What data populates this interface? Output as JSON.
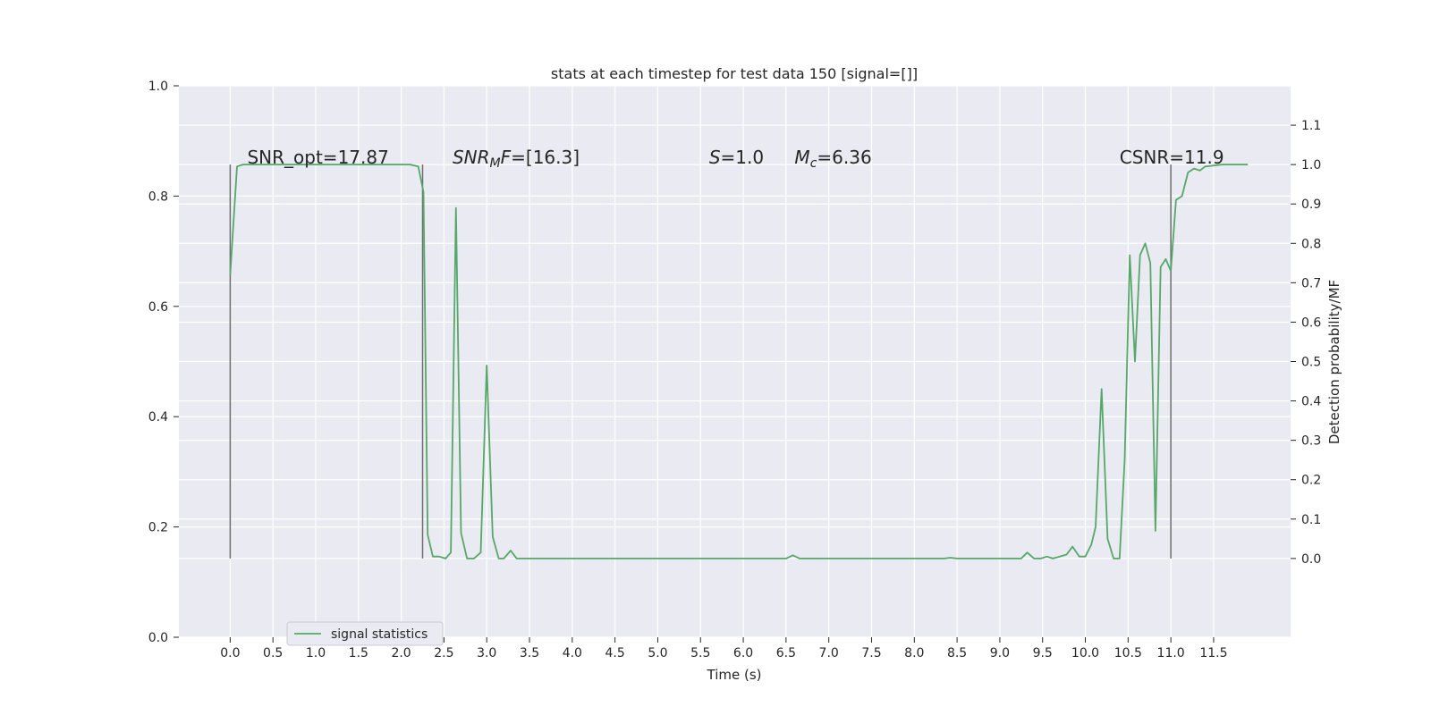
{
  "chart_data": {
    "type": "line",
    "title": "stats at each timestep for test data 150 [signal=[]]",
    "xlabel": "Time (s)",
    "ylabel": "",
    "y2label": "Detection probability/MF",
    "xlim": [
      -0.6,
      12.4
    ],
    "ylim": [
      0.0,
      1.0
    ],
    "y2lim": [
      -0.2,
      1.2
    ],
    "xticks": [
      "0.0",
      "0.5",
      "1.0",
      "1.5",
      "2.0",
      "2.5",
      "3.0",
      "3.5",
      "4.0",
      "4.5",
      "5.0",
      "5.5",
      "6.0",
      "6.5",
      "7.0",
      "7.5",
      "8.0",
      "8.5",
      "9.0",
      "9.5",
      "10.0",
      "10.5",
      "11.0",
      "11.5"
    ],
    "yticks": [
      "0.0",
      "0.2",
      "0.4",
      "0.6",
      "0.8",
      "1.0"
    ],
    "y2ticks": [
      "0.0",
      "0.1",
      "0.2",
      "0.3",
      "0.4",
      "0.5",
      "0.6",
      "0.7",
      "0.8",
      "0.9",
      "1.0",
      "1.1"
    ],
    "grid": true,
    "background": "#eaeaf2",
    "line_color": "#55a868",
    "marker_color": "#6e6e6e",
    "legend_placement": "lower-left",
    "annotations": [
      {
        "text": "SNR_opt=17.87",
        "x": 0.2,
        "y": 1.0
      },
      {
        "text": "SNR_MF=[16.3]",
        "x": 2.6,
        "y": 1.0
      },
      {
        "text": "S=1.0",
        "x": 5.6,
        "y": 1.0
      },
      {
        "text": "M_c=6.36",
        "x": 6.6,
        "y": 1.0
      },
      {
        "text": "CSNR=11.9",
        "x": 10.4,
        "y": 1.0
      }
    ],
    "vlines": [
      {
        "x": 0.0,
        "y2": [
          0.0,
          1.0
        ]
      },
      {
        "x": 2.25,
        "y2": [
          0.0,
          1.0
        ]
      },
      {
        "x": 11.0,
        "y2": [
          0.0,
          1.0
        ]
      }
    ],
    "series": [
      {
        "name": "signal statistics",
        "axis": "right",
        "x": [
          0.0,
          0.08,
          0.15,
          0.5,
          1.0,
          1.5,
          2.0,
          2.1,
          2.2,
          2.26,
          2.31,
          2.37,
          2.44,
          2.52,
          2.58,
          2.64,
          2.7,
          2.77,
          2.85,
          2.93,
          3.0,
          3.07,
          3.14,
          3.2,
          3.28,
          3.35,
          3.43,
          3.5,
          4.0,
          4.5,
          5.0,
          5.5,
          6.0,
          6.5,
          6.58,
          6.66,
          6.73,
          7.0,
          7.5,
          8.0,
          8.35,
          8.42,
          8.5,
          9.0,
          9.15,
          9.25,
          9.32,
          9.4,
          9.48,
          9.55,
          9.62,
          9.7,
          9.78,
          9.85,
          9.93,
          10.0,
          10.07,
          10.12,
          10.19,
          10.26,
          10.33,
          10.4,
          10.46,
          10.52,
          10.58,
          10.64,
          10.7,
          10.76,
          10.82,
          10.88,
          10.94,
          11.0,
          11.06,
          11.13,
          11.2,
          11.27,
          11.34,
          11.4,
          11.6,
          11.9
        ],
        "values": [
          0.72,
          0.995,
          1.0,
          1.0,
          1.0,
          1.0,
          1.0,
          1.0,
          0.995,
          0.93,
          0.06,
          0.005,
          0.005,
          0.0,
          0.015,
          0.89,
          0.065,
          0.0,
          0.0,
          0.015,
          0.49,
          0.055,
          0.0,
          0.0,
          0.02,
          0.0,
          0.0,
          0.0,
          0.0,
          0.0,
          0.0,
          0.0,
          0.0,
          0.0,
          0.008,
          0.0,
          0.0,
          0.0,
          0.0,
          0.0,
          0.0,
          0.002,
          0.0,
          0.0,
          0.0,
          0.0,
          0.015,
          0.0,
          0.0,
          0.005,
          0.0,
          0.005,
          0.01,
          0.03,
          0.005,
          0.005,
          0.035,
          0.08,
          0.43,
          0.05,
          0.0,
          0.0,
          0.25,
          0.77,
          0.5,
          0.77,
          0.8,
          0.75,
          0.07,
          0.74,
          0.76,
          0.73,
          0.91,
          0.92,
          0.98,
          0.99,
          0.985,
          0.995,
          1.0,
          1.0
        ]
      }
    ]
  }
}
